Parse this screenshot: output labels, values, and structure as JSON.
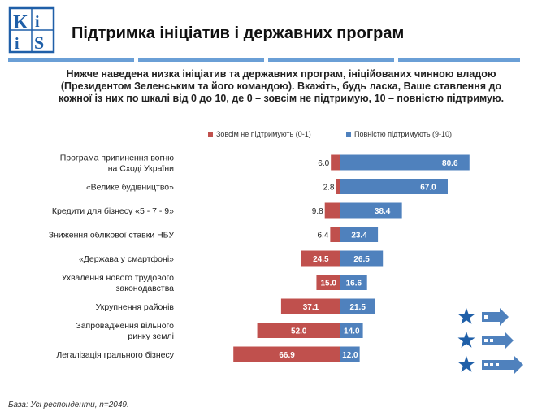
{
  "header": {
    "logo_text": "KIIS",
    "title": "Підтримка ініціатив і державних програм"
  },
  "question": "Нижче наведена низка ініціатив та державних програм, ініційованих чинною владою (Президентом Зеленським та його командою). Вкажіть, будь ласка, Ваше ставлення до кожної із них по шкалі від 0 до 10, де 0 – зовсім не підтримую, 10 – повністю підтримую.",
  "footnote": "База: Усі респонденти, n=2049.",
  "colors": {
    "negative": "#c0504d",
    "positive": "#4f81bd",
    "accent": "#6a9fd6",
    "logo": "#1f5fa8"
  },
  "icons": [
    "star-icon",
    "arrow-icon"
  ],
  "chart_data": {
    "type": "bar",
    "orientation": "horizontal-diverging",
    "categories": [
      [
        "Програма припинення вогню",
        "на Сході України"
      ],
      [
        "«Велике будівництво»"
      ],
      [
        "Кредити для бізнесу «5 - 7 - 9»"
      ],
      [
        "Зниження облікової ставки НБУ"
      ],
      [
        "«Держава у смартфоні»"
      ],
      [
        "Ухвалення нового трудового",
        "законодавства"
      ],
      [
        "Укрупнення районів"
      ],
      [
        "Запровадження вільного",
        "ринку землі"
      ],
      [
        "Легалізація грального бізнесу"
      ]
    ],
    "series": [
      {
        "name": "Зовсім не підтримують (0-1)",
        "color": "#c0504d",
        "values": [
          6.0,
          2.8,
          9.8,
          6.4,
          24.5,
          15.0,
          37.1,
          52.0,
          66.9
        ]
      },
      {
        "name": "Повністю підтримують (9-10)",
        "color": "#4f81bd",
        "values": [
          80.6,
          67.0,
          38.4,
          23.4,
          26.5,
          16.6,
          21.5,
          14.0,
          12.0
        ]
      }
    ],
    "legend_position": "top",
    "grid": false
  }
}
